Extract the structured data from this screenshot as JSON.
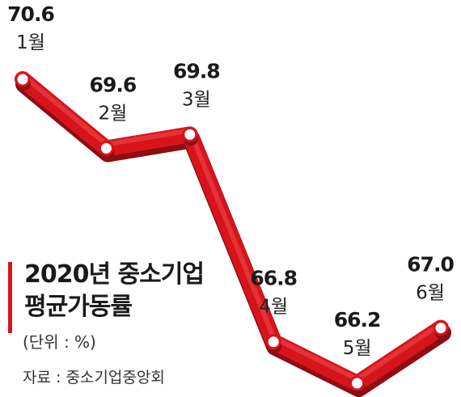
{
  "chart_data": {
    "type": "line",
    "title": "2020년 중소기업 평균가동률",
    "title_lines": [
      "2020년 중소기업",
      "평균가동률"
    ],
    "unit_label": "(단위 : %)",
    "source": "자료 : 중소기업중앙회",
    "categories": [
      "1월",
      "2월",
      "3월",
      "4월",
      "5월",
      "6월"
    ],
    "values": [
      70.6,
      69.6,
      69.8,
      66.8,
      66.2,
      67.0
    ],
    "value_labels": [
      "70.6",
      "69.6",
      "69.8",
      "66.8",
      "66.2",
      "67.0"
    ],
    "grid": false,
    "legend": "none"
  },
  "colors": {
    "line": "#d7141c",
    "line_dark": "#8e0c12",
    "marker_fill": "#ffffff",
    "text": "#1a1a1a",
    "accent_bar": "#d7141c"
  }
}
